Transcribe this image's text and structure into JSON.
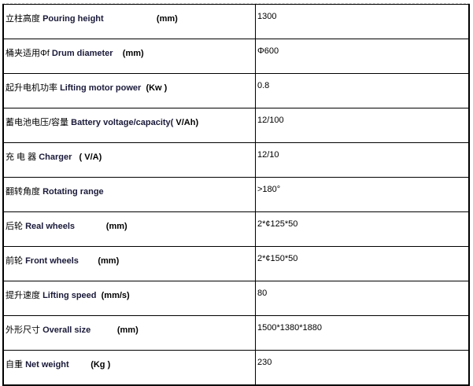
{
  "rows": [
    {
      "cn": "立柱高度",
      "en": "Pouring height",
      "unit": "(mm)",
      "value": "1300"
    },
    {
      "cn": "桶夹适用Φf",
      "en": "Drum diameter",
      "unit": "(mm)",
      "value": "Φ600"
    },
    {
      "cn": "起升电机功率",
      "en": "Lifting motor power",
      "unit": "(Kw )",
      "value": "0.8"
    },
    {
      "cn": "蓄电池电压/容量",
      "en": "Battery voltage/capacity(",
      "unit": "V/Ah)",
      "value": "12/100"
    },
    {
      "cn": "充 电 器",
      "en": "Charger",
      "unit": "( V/A)",
      "value": "12/10"
    },
    {
      "cn": "翻转角度",
      "en": "Rotating range",
      "unit": "",
      "value": ">180°"
    },
    {
      "cn": "后轮",
      "en": "Real wheels",
      "unit": "(mm)",
      "value": "2*¢125*50"
    },
    {
      "cn": "前轮",
      "en": "Front wheels",
      "unit": "(mm)",
      "value": "2*¢150*50"
    },
    {
      "cn": "提升速度",
      "en": "Lifting speed",
      "unit": "(mm/s)",
      "value": "80"
    },
    {
      "cn": "外形尺寸",
      "en": "Overall size",
      "unit": "(mm)",
      "value": "1500*1380*1880"
    },
    {
      "cn": "自重",
      "en": "Net weight",
      "unit": "(Kg )",
      "value": "230"
    }
  ]
}
